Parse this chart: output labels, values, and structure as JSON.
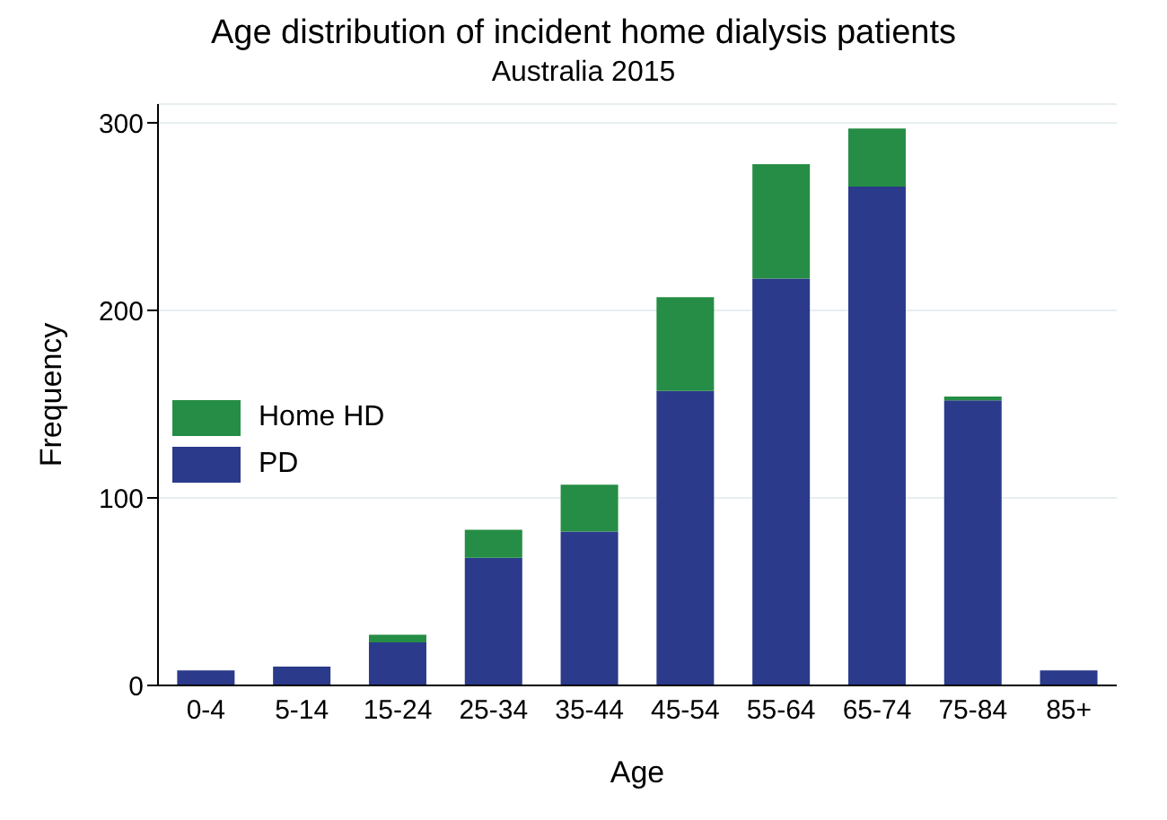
{
  "chart_data": {
    "type": "bar",
    "title": "Age distribution of incident home dialysis patients",
    "subtitle": "Australia 2015",
    "xlabel": "Age",
    "ylabel": "Frequency",
    "categories": [
      "0-4",
      "5-14",
      "15-24",
      "25-34",
      "35-44",
      "45-54",
      "55-64",
      "65-74",
      "75-84",
      "85+"
    ],
    "series": [
      {
        "name": "PD",
        "color": "#2b3a8a",
        "values": [
          8,
          10,
          23,
          68,
          82,
          157,
          217,
          266,
          152,
          8
        ]
      },
      {
        "name": "Home HD",
        "color": "#258d45",
        "values": [
          0,
          0,
          4,
          15,
          25,
          50,
          61,
          31,
          2,
          0
        ]
      }
    ],
    "stacked": true,
    "ylim": [
      0,
      310
    ],
    "yticks": [
      0,
      100,
      200,
      300
    ],
    "grid": "y",
    "legend": "left"
  }
}
